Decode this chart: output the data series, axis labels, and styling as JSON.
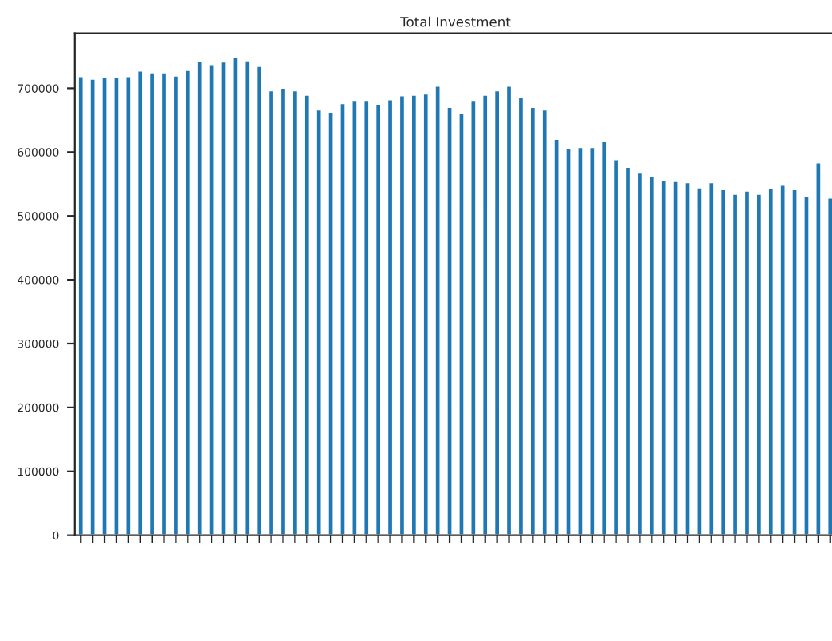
{
  "chart_data": {
    "type": "bar",
    "title": "Total Investment",
    "color": "#1f77b4",
    "categories": [
      null,
      null,
      null,
      null,
      null,
      null,
      null,
      null,
      null,
      null,
      null,
      null,
      null,
      null,
      null,
      null,
      null,
      null,
      null,
      null,
      null,
      null,
      null,
      null,
      null,
      null,
      null,
      null,
      null,
      null,
      null,
      null,
      null,
      null,
      null,
      null,
      null,
      null,
      null,
      null,
      null,
      null,
      null,
      null,
      null,
      null,
      null,
      null,
      null,
      null,
      null,
      null,
      null,
      null,
      null,
      null,
      null,
      null,
      null,
      null,
      null,
      null,
      null,
      null
    ],
    "values": [
      719000,
      715000,
      718000,
      718000,
      719000,
      728000,
      725000,
      725000,
      720000,
      729000,
      743000,
      738000,
      742000,
      749000,
      744000,
      735000,
      697000,
      701000,
      697000,
      690000,
      667000,
      663000,
      677000,
      682000,
      682000,
      676000,
      683000,
      689000,
      690000,
      692000,
      704000,
      671000,
      661000,
      682000,
      690000,
      697000,
      704000,
      686000,
      671000,
      667000,
      621000,
      607000,
      608000,
      608000,
      617000,
      589000,
      577000,
      568000,
      562000,
      556000,
      555000,
      553000,
      545000,
      553000,
      542000,
      535000,
      540000,
      535000,
      544000,
      549000,
      542000,
      531000,
      584000,
      529000
    ],
    "ylim": [
      0,
      786000
    ],
    "yticks": [
      0,
      100000,
      200000,
      300000,
      400000,
      500000,
      600000,
      700000
    ],
    "grid": false
  }
}
